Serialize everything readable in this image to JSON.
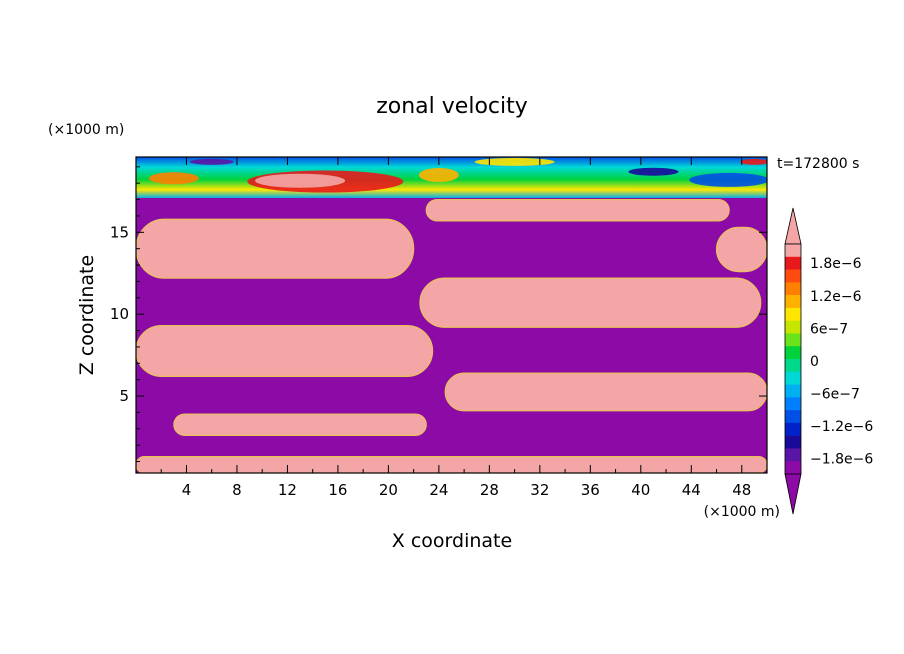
{
  "chart_data": {
    "type": "heatmap",
    "title": "zonal velocity",
    "xlabel": "X coordinate",
    "ylabel": "Z coordinate",
    "x_unit": "(×1000 m)",
    "y_unit": "(×1000 m)",
    "time_label": "t=172800 s",
    "xlim": [
      0,
      50
    ],
    "ylim": [
      0.3,
      19.6
    ],
    "x_ticks": [
      "4",
      "8",
      "12",
      "16",
      "20",
      "24",
      "28",
      "32",
      "36",
      "40",
      "44",
      "48"
    ],
    "y_ticks": [
      "5",
      "10",
      "15"
    ],
    "colorbar": {
      "tick_labels": [
        "1.8e−6",
        "1.2e−6",
        "6e−7",
        "0",
        "−6e−7",
        "−1.2e−6",
        "−1.8e−6"
      ],
      "colors": [
        "#f4a6a6",
        "#e8191c",
        "#ff4b10",
        "#ff7f00",
        "#ffb100",
        "#ffe600",
        "#c6e600",
        "#6be31a",
        "#00d23a",
        "#00d98c",
        "#00d8d8",
        "#00b0f0",
        "#0080ff",
        "#0050e6",
        "#0022c8",
        "#1a0a9a",
        "#5a14a6",
        "#8c0aa6"
      ],
      "over_color": "#f4a6a6",
      "under_color": "#8c0aa6"
    },
    "background_color": "#8c0aa6",
    "positive_color": "#f4a6a6",
    "positive_cells": [
      {
        "x": [
          0,
          22
        ],
        "z": [
          12.2,
          15.8
        ]
      },
      {
        "x": [
          22.5,
          49.5
        ],
        "z": [
          9.2,
          12.2
        ]
      },
      {
        "x": [
          0,
          23.5
        ],
        "z": [
          6.2,
          9.3
        ]
      },
      {
        "x": [
          24.5,
          50
        ],
        "z": [
          4.1,
          6.4
        ]
      },
      {
        "x": [
          3,
          23
        ],
        "z": [
          2.6,
          3.9
        ]
      },
      {
        "x": [
          23,
          47
        ],
        "z": [
          15.7,
          17.0
        ]
      },
      {
        "x": [
          46,
          50
        ],
        "z": [
          12.6,
          15.3
        ]
      },
      {
        "x": [
          0,
          50
        ],
        "z": [
          0.3,
          1.3
        ]
      }
    ]
  }
}
